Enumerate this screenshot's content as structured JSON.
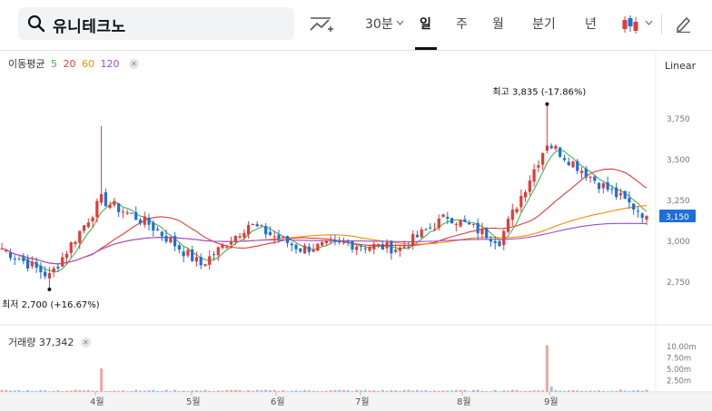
{
  "search": {
    "value": "유니테크노"
  },
  "toolbar": {
    "tabs": [
      "30분",
      "일",
      "주",
      "월",
      "분기",
      "년"
    ],
    "active_tab": "일",
    "chart_style": "candle"
  },
  "indicator_legend": {
    "label": "이동평균",
    "periods": [
      {
        "label": "5",
        "color": "#4caf50"
      },
      {
        "label": "20",
        "color": "#e53935"
      },
      {
        "label": "60",
        "color": "#fb8c00"
      },
      {
        "label": "120",
        "color": "#9c4dcc"
      }
    ]
  },
  "scale_mode": "Linear",
  "price_axis": {
    "ticks": [
      "3,750",
      "3,500",
      "3,250",
      "3,000",
      "2,750"
    ],
    "current_price": "3,150"
  },
  "annotations": {
    "high": {
      "label": "최고",
      "value": "3,835",
      "pct": "(-17.86%)"
    },
    "low": {
      "label": "최저",
      "value": "2,700",
      "pct": "(+16.67%)"
    }
  },
  "volume": {
    "label": "거래량",
    "value": "37,342",
    "ticks": [
      "10.00m",
      "7.50m",
      "5.00m",
      "2.50m"
    ]
  },
  "x_axis": {
    "months": [
      "4월",
      "5월",
      "6월",
      "7월",
      "8월",
      "9월"
    ]
  },
  "colors": {
    "up": "#e53935",
    "down": "#1e6fd9",
    "accent": "#111111"
  },
  "chart_data": {
    "type": "candlestick",
    "price_ylim": [
      2600,
      3900
    ],
    "approx_close_path": [
      {
        "date": "3월 초",
        "close": 2950
      },
      {
        "date": "3월 말",
        "close": 2780
      },
      {
        "date": "3월 말(급등)",
        "close": 3250
      },
      {
        "date": "4월 초",
        "close": 3100
      },
      {
        "date": "4월 중",
        "close": 2850
      },
      {
        "date": "5월",
        "close": 3100
      },
      {
        "date": "6월",
        "close": 2950
      },
      {
        "date": "7월",
        "close": 2980
      },
      {
        "date": "8월",
        "close": 2950
      },
      {
        "date": "8월 말",
        "close": 3150
      },
      {
        "date": "9월 초",
        "close": 3000
      },
      {
        "date": "9월 초(급등)",
        "close": 3600
      },
      {
        "date": "9월 중",
        "close": 3350
      },
      {
        "date": "9월 말",
        "close": 3150
      }
    ],
    "high": 3835,
    "low": 2700
  }
}
